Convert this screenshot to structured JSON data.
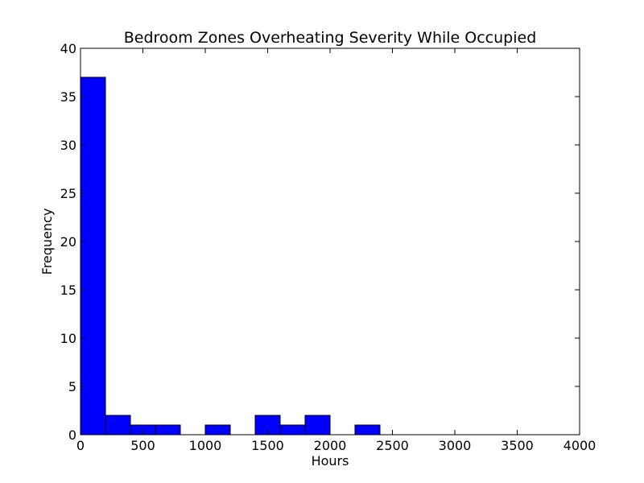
{
  "chart_data": {
    "type": "bar",
    "subtype": "histogram",
    "title": "Bedroom Zones Overheating Severity While Occupied",
    "xlabel": "Hours",
    "ylabel": "Frequency",
    "xlim": [
      0,
      4000
    ],
    "ylim": [
      0,
      40
    ],
    "x_ticks": [
      0,
      500,
      1000,
      1500,
      2000,
      2500,
      3000,
      3500,
      4000
    ],
    "y_ticks": [
      0,
      5,
      10,
      15,
      20,
      25,
      30,
      35,
      40
    ],
    "bin_edges": [
      0,
      200,
      400,
      600,
      800,
      1000,
      1200,
      1400,
      1600,
      1800,
      2000,
      2200,
      2400,
      2600,
      2800,
      3000,
      3200,
      3400,
      3600,
      3800
    ],
    "values": [
      37,
      2,
      1,
      1,
      0,
      1,
      0,
      2,
      1,
      2,
      0,
      1,
      0,
      0,
      0,
      0,
      0,
      0,
      0
    ],
    "bar_color": "#0000ff",
    "edge_color": "#000000",
    "grid": false,
    "legend": "none"
  }
}
